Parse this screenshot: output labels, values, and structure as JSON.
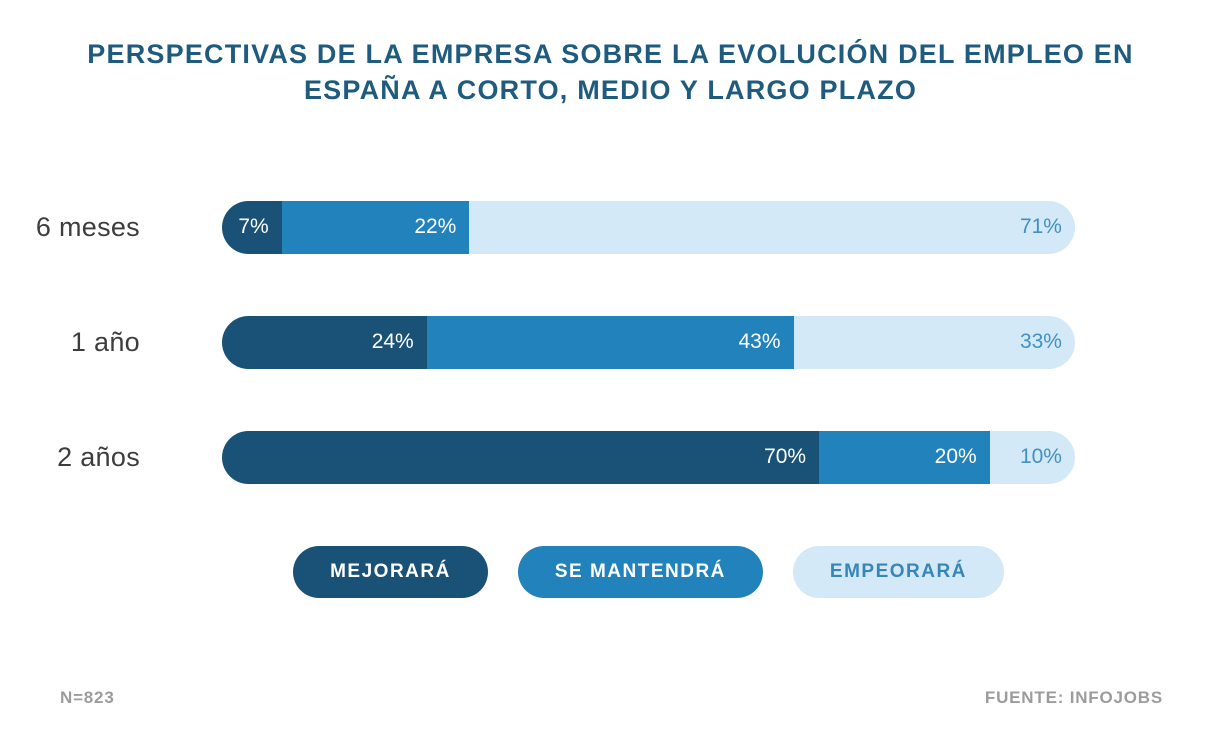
{
  "title": "PERSPECTIVAS DE LA EMPRESA SOBRE LA EVOLUCIÓN DEL EMPLEO EN ESPAÑA A CORTO, MEDIO Y LARGO PLAZO",
  "chart_data": {
    "type": "bar",
    "orientation": "horizontal",
    "stacked": true,
    "title": "PERSPECTIVAS DE LA EMPRESA SOBRE LA EVOLUCIÓN DEL EMPLEO EN ESPAÑA A CORTO, MEDIO Y LARGO PLAZO",
    "categories": [
      "6 meses",
      "1 año",
      "2 años"
    ],
    "series": [
      {
        "name": "MEJORARÁ",
        "values": [
          7,
          24,
          70
        ],
        "color": "#195276"
      },
      {
        "name": "SE MANTENDRÁ",
        "values": [
          22,
          43,
          20
        ],
        "color": "#2282bc"
      },
      {
        "name": "EMPEORARÁ",
        "values": [
          71,
          33,
          10
        ],
        "color": "#d3e9f8"
      }
    ],
    "value_format": "percent",
    "xlim": [
      0,
      100
    ],
    "grid": false,
    "legend_position": "bottom",
    "annotations": [
      "N=823",
      "FUENTE: INFOJOBS"
    ]
  },
  "rows": [
    {
      "label": "6 meses",
      "segments": [
        {
          "series": "MEJORARÁ",
          "value": 7,
          "label": "7%"
        },
        {
          "series": "SE MANTENDRÁ",
          "value": 22,
          "label": "22%"
        },
        {
          "series": "EMPEORARÁ",
          "value": 71,
          "label": "71%"
        }
      ]
    },
    {
      "label": "1 año",
      "segments": [
        {
          "series": "MEJORARÁ",
          "value": 24,
          "label": "24%"
        },
        {
          "series": "SE MANTENDRÁ",
          "value": 43,
          "label": "43%"
        },
        {
          "series": "EMPEORARÁ",
          "value": 33,
          "label": "33%"
        }
      ]
    },
    {
      "label": "2 años",
      "segments": [
        {
          "series": "MEJORARÁ",
          "value": 70,
          "label": "70%"
        },
        {
          "series": "SE MANTENDRÁ",
          "value": 20,
          "label": "20%"
        },
        {
          "series": "EMPEORARÁ",
          "value": 10,
          "label": "10%"
        }
      ]
    }
  ],
  "legend": {
    "items": [
      {
        "label": "MEJORARÁ",
        "color": "#195276",
        "text_color": "#ffffff"
      },
      {
        "label": "SE MANTENDRÁ",
        "color": "#2282bc",
        "text_color": "#ffffff"
      },
      {
        "label": "EMPEORARÁ",
        "color": "#d3e9f8",
        "text_color": "#3786b8"
      }
    ]
  },
  "footer": {
    "sample_size": "N=823",
    "source": "FUENTE: INFOJOBS"
  },
  "colors": {
    "title": "#1e5b7e",
    "improve": "#195276",
    "maintain": "#2282bc",
    "worsen": "#d3e9f8",
    "worsen_text": "#4191c1",
    "row_label": "#3d3d3d",
    "footer_text": "#9c9c9c",
    "background": "#ffffff"
  }
}
